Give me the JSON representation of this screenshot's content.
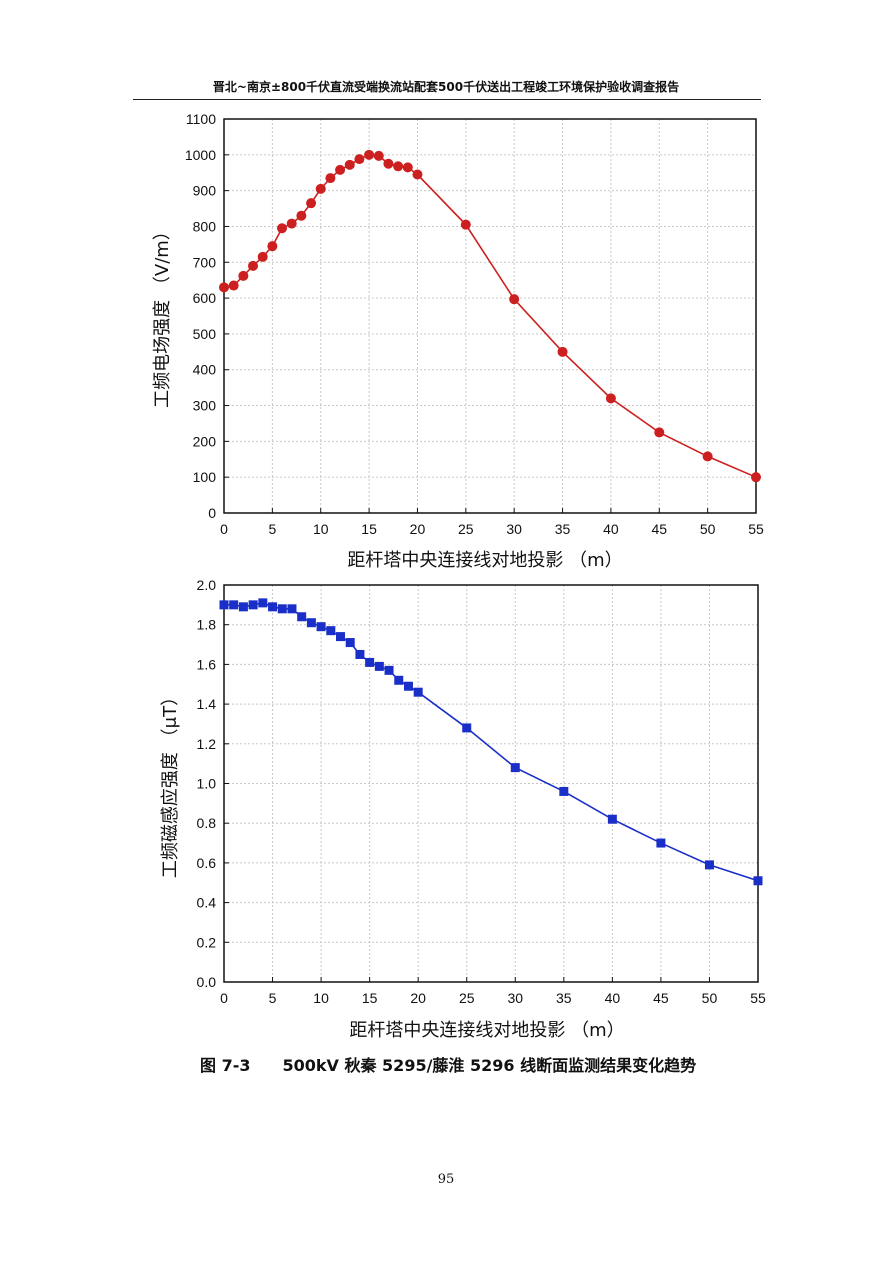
{
  "header": {
    "title": "晋北~南京±800千伏直流受端换流站配套500千伏送出工程竣工环境保护验收调查报告"
  },
  "caption": {
    "number": "图 7-3",
    "text": "500kV 秋秦 5295/藤淮 5296 线断面监测结果变化趋势"
  },
  "page_number": "95",
  "chart_data": [
    {
      "type": "line",
      "xlabel": "距杆塔中央连接线对地投影 （m）",
      "ylabel": "工频电场强度 （V/m）",
      "xlim": [
        0,
        55
      ],
      "ylim": [
        0,
        1100
      ],
      "xticks": [
        0,
        5,
        10,
        15,
        20,
        25,
        30,
        35,
        40,
        45,
        50,
        55
      ],
      "yticks": [
        0,
        100,
        200,
        300,
        400,
        500,
        600,
        700,
        800,
        900,
        1000,
        1100
      ],
      "grid": true,
      "color": "#cc1f1f",
      "marker": "circle",
      "x": [
        0,
        1,
        2,
        3,
        4,
        5,
        6,
        7,
        8,
        9,
        10,
        11,
        12,
        13,
        14,
        15,
        16,
        17,
        18,
        19,
        20,
        25,
        30,
        35,
        40,
        45,
        50,
        55
      ],
      "y": [
        630,
        635,
        662,
        690,
        715,
        745,
        795,
        808,
        830,
        865,
        905,
        935,
        958,
        972,
        988,
        1000,
        997,
        975,
        968,
        965,
        945,
        805,
        597,
        450,
        320,
        225,
        158,
        100
      ]
    },
    {
      "type": "line",
      "xlabel": "距杆塔中央连接线对地投影 （m）",
      "ylabel": "工频磁感应强度 （μT）",
      "xlim": [
        0,
        55
      ],
      "ylim": [
        0,
        2.0
      ],
      "xticks": [
        0,
        5,
        10,
        15,
        20,
        25,
        30,
        35,
        40,
        45,
        50,
        55
      ],
      "yticks": [
        "0.0",
        "0.2",
        "0.4",
        "0.6",
        "0.8",
        "1.0",
        "1.2",
        "1.4",
        "1.6",
        "1.8",
        "2.0"
      ],
      "grid": true,
      "color": "#1a2fc8",
      "marker": "square",
      "x": [
        0,
        1,
        2,
        3,
        4,
        5,
        6,
        7,
        8,
        9,
        10,
        11,
        12,
        13,
        14,
        15,
        16,
        17,
        18,
        19,
        20,
        25,
        30,
        35,
        40,
        45,
        50,
        55
      ],
      "y": [
        1.9,
        1.9,
        1.89,
        1.9,
        1.91,
        1.89,
        1.88,
        1.88,
        1.84,
        1.81,
        1.79,
        1.77,
        1.74,
        1.71,
        1.65,
        1.61,
        1.59,
        1.57,
        1.52,
        1.49,
        1.46,
        1.28,
        1.08,
        0.96,
        0.82,
        0.7,
        0.59,
        0.51
      ]
    }
  ]
}
